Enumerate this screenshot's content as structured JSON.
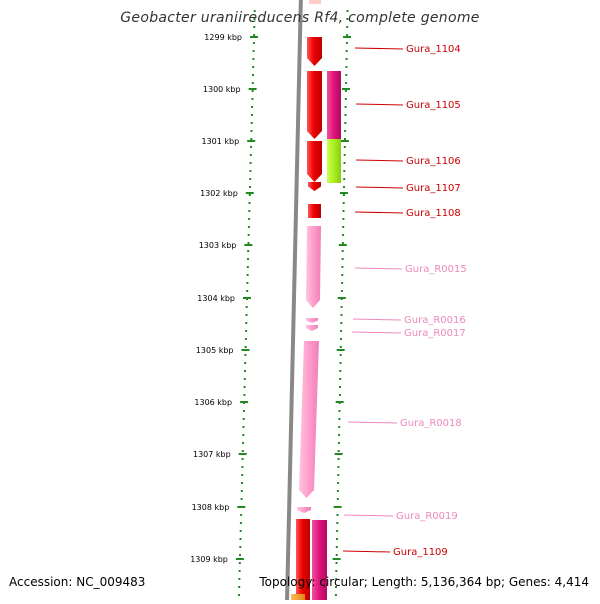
{
  "title": "Geobacter uraniireducens Rf4, complete genome",
  "footer": {
    "accession": "Accession: NC_009483",
    "summary": "Topology: circular; Length: 5,136,364 bp; Genes: 4,414"
  },
  "colors": {
    "cds": "#ee1111",
    "cds_magenta": "#e0127a",
    "cds_green": "#aaee22",
    "cds_orange": "#ee9922",
    "rna": "#ff99cc",
    "rna_label": "#ee88bb",
    "scale": "#228822",
    "label": "#cc0000",
    "backbone": "#888888"
  },
  "scale": {
    "ticks": [
      "1299 kbp",
      "1300 kbp",
      "1301 kbp",
      "1302 kbp",
      "1303 kbp",
      "1304 kbp",
      "1305 kbp",
      "1306 kbp",
      "1307 kbp",
      "1308 kbp",
      "1309 kbp"
    ]
  },
  "genes": [
    {
      "name": "Gura_1104",
      "type": "CDS",
      "strand": 1,
      "color": "cds"
    },
    {
      "name": "Gura_1105",
      "type": "CDS",
      "strand": -1,
      "color": "cds_magenta"
    },
    {
      "name": "Gura_1106",
      "type": "CDS",
      "strand": -1,
      "color": "cds_green"
    },
    {
      "name": "Gura_1107",
      "type": "CDS",
      "strand": 1,
      "color": "cds"
    },
    {
      "name": "Gura_1108",
      "type": "CDS",
      "strand": 1,
      "color": "cds"
    },
    {
      "name": "Gura_R0015",
      "type": "rRNA",
      "strand": 1,
      "color": "rna"
    },
    {
      "name": "Gura_R0016",
      "type": "tRNA",
      "strand": 1,
      "color": "rna"
    },
    {
      "name": "Gura_R0017",
      "type": "tRNA",
      "strand": 1,
      "color": "rna"
    },
    {
      "name": "Gura_R0018",
      "type": "rRNA",
      "strand": 1,
      "color": "rna"
    },
    {
      "name": "Gura_R0019",
      "type": "rRNA",
      "strand": 1,
      "color": "rna"
    },
    {
      "name": "Gura_1109",
      "type": "CDS",
      "strand": -1,
      "color": "cds_magenta"
    }
  ]
}
